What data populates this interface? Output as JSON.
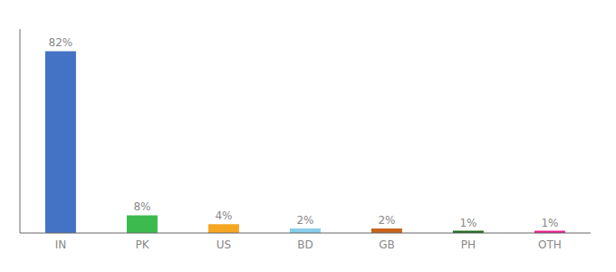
{
  "chart_data": {
    "type": "bar",
    "categories": [
      "IN",
      "PK",
      "US",
      "BD",
      "GB",
      "PH",
      "OTH"
    ],
    "values": [
      82,
      8,
      4,
      2,
      2,
      1,
      1
    ],
    "value_labels": [
      "82%",
      "8%",
      "4%",
      "2%",
      "2%",
      "1%",
      "1%"
    ],
    "colors": [
      "#4472c4",
      "#3dba4e",
      "#f5a623",
      "#87ceeb",
      "#c8651d",
      "#1a6b1a",
      "#e91e8c"
    ],
    "ylim": [
      0,
      92
    ],
    "data_labels": true,
    "tick_labels": "x",
    "grid": false
  }
}
